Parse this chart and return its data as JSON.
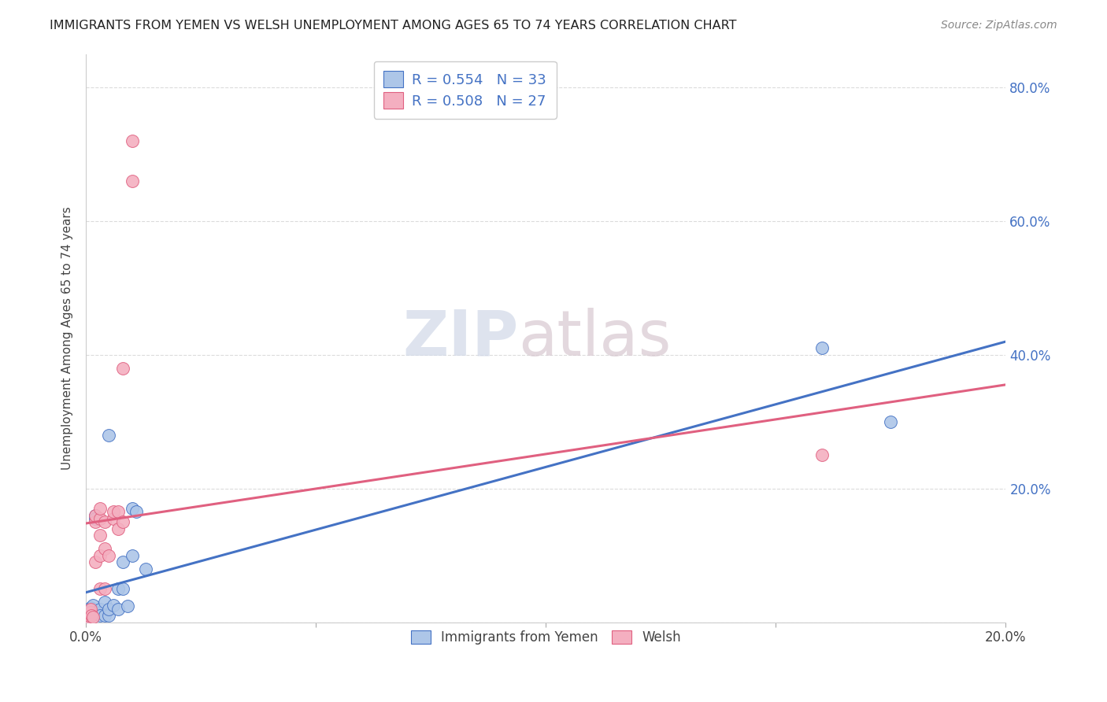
{
  "title": "IMMIGRANTS FROM YEMEN VS WELSH UNEMPLOYMENT AMONG AGES 65 TO 74 YEARS CORRELATION CHART",
  "source": "Source: ZipAtlas.com",
  "ylabel": "Unemployment Among Ages 65 to 74 years",
  "xlim": [
    0.0,
    0.2
  ],
  "ylim": [
    0.0,
    0.85
  ],
  "yticks": [
    0.0,
    0.2,
    0.4,
    0.6,
    0.8
  ],
  "ytick_labels": [
    "",
    "20.0%",
    "40.0%",
    "60.0%",
    "80.0%"
  ],
  "xticks": [
    0.0,
    0.05,
    0.1,
    0.15,
    0.2
  ],
  "xtick_labels": [
    "0.0%",
    "",
    "",
    "",
    "20.0%"
  ],
  "blue_R": 0.554,
  "blue_N": 33,
  "pink_R": 0.508,
  "pink_N": 27,
  "blue_color": "#adc6e8",
  "pink_color": "#f4afc0",
  "blue_line_color": "#4472c4",
  "pink_line_color": "#e06080",
  "blue_scatter": [
    [
      0.0005,
      0.005
    ],
    [
      0.0005,
      0.008
    ],
    [
      0.0008,
      0.01
    ],
    [
      0.0008,
      0.012
    ],
    [
      0.001,
      0.015
    ],
    [
      0.001,
      0.018
    ],
    [
      0.001,
      0.022
    ],
    [
      0.0012,
      0.01
    ],
    [
      0.0012,
      0.015
    ],
    [
      0.0015,
      0.02
    ],
    [
      0.0015,
      0.025
    ],
    [
      0.002,
      0.015
    ],
    [
      0.002,
      0.16
    ],
    [
      0.002,
      0.155
    ],
    [
      0.003,
      0.02
    ],
    [
      0.003,
      0.01
    ],
    [
      0.004,
      0.01
    ],
    [
      0.004,
      0.03
    ],
    [
      0.005,
      0.01
    ],
    [
      0.005,
      0.02
    ],
    [
      0.005,
      0.28
    ],
    [
      0.006,
      0.025
    ],
    [
      0.007,
      0.02
    ],
    [
      0.007,
      0.05
    ],
    [
      0.008,
      0.09
    ],
    [
      0.008,
      0.05
    ],
    [
      0.009,
      0.024
    ],
    [
      0.01,
      0.1
    ],
    [
      0.01,
      0.17
    ],
    [
      0.011,
      0.165
    ],
    [
      0.013,
      0.08
    ],
    [
      0.16,
      0.41
    ],
    [
      0.175,
      0.3
    ]
  ],
  "pink_scatter": [
    [
      0.0005,
      0.005
    ],
    [
      0.0007,
      0.01
    ],
    [
      0.001,
      0.015
    ],
    [
      0.001,
      0.02
    ],
    [
      0.0012,
      0.01
    ],
    [
      0.0015,
      0.008
    ],
    [
      0.002,
      0.15
    ],
    [
      0.002,
      0.16
    ],
    [
      0.002,
      0.09
    ],
    [
      0.003,
      0.05
    ],
    [
      0.003,
      0.1
    ],
    [
      0.003,
      0.13
    ],
    [
      0.003,
      0.155
    ],
    [
      0.003,
      0.17
    ],
    [
      0.004,
      0.05
    ],
    [
      0.004,
      0.11
    ],
    [
      0.004,
      0.15
    ],
    [
      0.005,
      0.1
    ],
    [
      0.006,
      0.155
    ],
    [
      0.006,
      0.165
    ],
    [
      0.007,
      0.14
    ],
    [
      0.007,
      0.165
    ],
    [
      0.008,
      0.15
    ],
    [
      0.008,
      0.38
    ],
    [
      0.01,
      0.66
    ],
    [
      0.01,
      0.72
    ],
    [
      0.16,
      0.25
    ]
  ],
  "watermark_zip": "ZIP",
  "watermark_atlas": "atlas",
  "background_color": "#ffffff",
  "grid_color": "#cccccc"
}
